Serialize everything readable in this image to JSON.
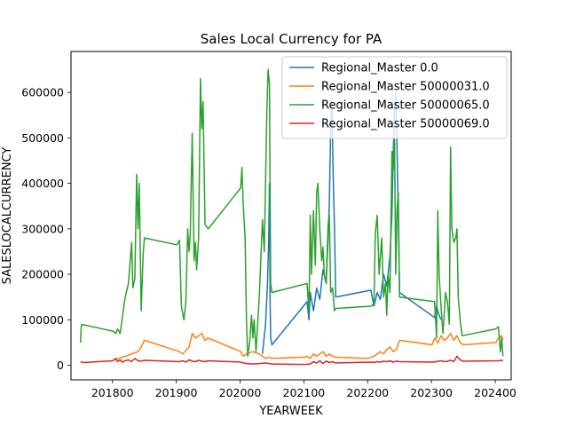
{
  "chart_data": {
    "type": "line",
    "title": "Sales Local Currency for PA",
    "xlabel": "YEARWEEK",
    "ylabel": "SALESLOCALCURRENCY",
    "xlim": [
      201735,
      202425
    ],
    "ylim": [
      -32000,
      690000
    ],
    "xticks": [
      201800,
      201900,
      202000,
      202100,
      202200,
      202300,
      202400
    ],
    "yticks": [
      0,
      100000,
      200000,
      300000,
      400000,
      500000,
      600000
    ],
    "legend_position": "upper right",
    "grid": false,
    "series": [
      {
        "name": "Regional_Master 0.0",
        "color": "#1f77b4",
        "points": [
          [
            202035,
            25000
          ],
          [
            202040,
            90000
          ],
          [
            202043,
            180000
          ],
          [
            202045,
            280000
          ],
          [
            202046,
            400000
          ],
          [
            202047,
            150000
          ],
          [
            202048,
            60000
          ],
          [
            202050,
            45000
          ],
          [
            202105,
            140000
          ],
          [
            202108,
            100000
          ],
          [
            202110,
            160000
          ],
          [
            202115,
            120000
          ],
          [
            202120,
            170000
          ],
          [
            202125,
            145000
          ],
          [
            202130,
            210000
          ],
          [
            202135,
            180000
          ],
          [
            202138,
            280000
          ],
          [
            202140,
            360000
          ],
          [
            202142,
            520000
          ],
          [
            202144,
            580000
          ],
          [
            202146,
            420000
          ],
          [
            202148,
            300000
          ],
          [
            202150,
            150000
          ],
          [
            202205,
            165000
          ],
          [
            202210,
            130000
          ],
          [
            202215,
            160000
          ],
          [
            202220,
            145000
          ],
          [
            202225,
            200000
          ],
          [
            202230,
            175000
          ],
          [
            202235,
            240000
          ],
          [
            202238,
            330000
          ],
          [
            202240,
            460000
          ],
          [
            202242,
            560000
          ],
          [
            202244,
            600000
          ],
          [
            202246,
            480000
          ],
          [
            202248,
            330000
          ],
          [
            202250,
            160000
          ],
          [
            202305,
            105000
          ],
          [
            202308,
            130000
          ],
          [
            202312,
            110000
          ],
          [
            202315,
            100000
          ]
        ]
      },
      {
        "name": "Regional_Master 50000031.0",
        "color": "#ff7f0e",
        "points": [
          [
            201801,
            12000
          ],
          [
            201810,
            15000
          ],
          [
            201820,
            20000
          ],
          [
            201830,
            25000
          ],
          [
            201840,
            30000
          ],
          [
            201845,
            40000
          ],
          [
            201850,
            55000
          ],
          [
            201905,
            30000
          ],
          [
            201910,
            25000
          ],
          [
            201920,
            40000
          ],
          [
            201925,
            70000
          ],
          [
            201930,
            60000
          ],
          [
            201935,
            65000
          ],
          [
            201940,
            70000
          ],
          [
            201945,
            55000
          ],
          [
            201950,
            60000
          ],
          [
            202001,
            30000
          ],
          [
            202005,
            20000
          ],
          [
            202010,
            25000
          ],
          [
            202020,
            30000
          ],
          [
            202030,
            25000
          ],
          [
            202035,
            20000
          ],
          [
            202040,
            15000
          ],
          [
            202045,
            18000
          ],
          [
            202050,
            15000
          ],
          [
            202101,
            18000
          ],
          [
            202105,
            20000
          ],
          [
            202110,
            15000
          ],
          [
            202115,
            25000
          ],
          [
            202120,
            20000
          ],
          [
            202125,
            25000
          ],
          [
            202130,
            30000
          ],
          [
            202135,
            20000
          ],
          [
            202140,
            25000
          ],
          [
            202145,
            20000
          ],
          [
            202150,
            18000
          ],
          [
            202201,
            15000
          ],
          [
            202210,
            20000
          ],
          [
            202220,
            30000
          ],
          [
            202225,
            25000
          ],
          [
            202230,
            35000
          ],
          [
            202235,
            40000
          ],
          [
            202240,
            30000
          ],
          [
            202245,
            35000
          ],
          [
            202250,
            55000
          ],
          [
            202301,
            45000
          ],
          [
            202305,
            60000
          ],
          [
            202310,
            50000
          ],
          [
            202315,
            65000
          ],
          [
            202320,
            55000
          ],
          [
            202325,
            60000
          ],
          [
            202330,
            70000
          ],
          [
            202335,
            55000
          ],
          [
            202340,
            65000
          ],
          [
            202345,
            50000
          ],
          [
            202350,
            45000
          ],
          [
            202401,
            50000
          ],
          [
            202405,
            60000
          ],
          [
            202410,
            65000
          ],
          [
            202412,
            55000
          ]
        ]
      },
      {
        "name": "Regional_Master 50000065.0",
        "color": "#2ca02c",
        "points": [
          [
            201750,
            50000
          ],
          [
            201751,
            85000
          ],
          [
            201752,
            90000
          ],
          [
            201801,
            75000
          ],
          [
            201805,
            70000
          ],
          [
            201808,
            80000
          ],
          [
            201812,
            70000
          ],
          [
            201815,
            100000
          ],
          [
            201820,
            150000
          ],
          [
            201825,
            180000
          ],
          [
            201830,
            270000
          ],
          [
            201832,
            170000
          ],
          [
            201835,
            190000
          ],
          [
            201838,
            420000
          ],
          [
            201840,
            300000
          ],
          [
            201842,
            400000
          ],
          [
            201845,
            120000
          ],
          [
            201848,
            240000
          ],
          [
            201850,
            280000
          ],
          [
            201901,
            265000
          ],
          [
            201905,
            275000
          ],
          [
            201908,
            130000
          ],
          [
            201912,
            100000
          ],
          [
            201915,
            140000
          ],
          [
            201918,
            300000
          ],
          [
            201920,
            250000
          ],
          [
            201922,
            290000
          ],
          [
            201925,
            510000
          ],
          [
            201928,
            230000
          ],
          [
            201930,
            270000
          ],
          [
            201932,
            210000
          ],
          [
            201935,
            280000
          ],
          [
            201938,
            630000
          ],
          [
            201940,
            520000
          ],
          [
            201942,
            580000
          ],
          [
            201945,
            310000
          ],
          [
            201950,
            300000
          ],
          [
            202001,
            390000
          ],
          [
            202003,
            435000
          ],
          [
            202005,
            350000
          ],
          [
            202008,
            280000
          ],
          [
            202010,
            100000
          ],
          [
            202012,
            20000
          ],
          [
            202015,
            50000
          ],
          [
            202018,
            110000
          ],
          [
            202020,
            60000
          ],
          [
            202022,
            100000
          ],
          [
            202025,
            30000
          ],
          [
            202030,
            150000
          ],
          [
            202035,
            320000
          ],
          [
            202038,
            250000
          ],
          [
            202040,
            400000
          ],
          [
            202042,
            560000
          ],
          [
            202044,
            650000
          ],
          [
            202046,
            620000
          ],
          [
            202048,
            180000
          ],
          [
            202050,
            160000
          ],
          [
            202105,
            180000
          ],
          [
            202108,
            120000
          ],
          [
            202110,
            330000
          ],
          [
            202112,
            200000
          ],
          [
            202115,
            340000
          ],
          [
            202118,
            220000
          ],
          [
            202120,
            380000
          ],
          [
            202122,
            400000
          ],
          [
            202125,
            300000
          ],
          [
            202128,
            230000
          ],
          [
            202130,
            260000
          ],
          [
            202132,
            200000
          ],
          [
            202135,
            180000
          ],
          [
            202138,
            310000
          ],
          [
            202140,
            330000
          ],
          [
            202142,
            160000
          ],
          [
            202145,
            170000
          ],
          [
            202148,
            120000
          ],
          [
            202150,
            125000
          ],
          [
            202205,
            130000
          ],
          [
            202210,
            135000
          ],
          [
            202212,
            290000
          ],
          [
            202215,
            330000
          ],
          [
            202218,
            200000
          ],
          [
            202220,
            240000
          ],
          [
            202222,
            280000
          ],
          [
            202225,
            150000
          ],
          [
            202228,
            180000
          ],
          [
            202230,
            110000
          ],
          [
            202232,
            200000
          ],
          [
            202235,
            160000
          ],
          [
            202238,
            470000
          ],
          [
            202240,
            430000
          ],
          [
            202242,
            500000
          ],
          [
            202244,
            200000
          ],
          [
            202246,
            340000
          ],
          [
            202248,
            380000
          ],
          [
            202250,
            150000
          ],
          [
            202305,
            140000
          ],
          [
            202308,
            60000
          ],
          [
            202310,
            340000
          ],
          [
            202312,
            200000
          ],
          [
            202315,
            130000
          ],
          [
            202318,
            70000
          ],
          [
            202320,
            110000
          ],
          [
            202322,
            160000
          ],
          [
            202325,
            140000
          ],
          [
            202328,
            90000
          ],
          [
            202330,
            480000
          ],
          [
            202332,
            300000
          ],
          [
            202335,
            270000
          ],
          [
            202338,
            280000
          ],
          [
            202340,
            300000
          ],
          [
            202342,
            150000
          ],
          [
            202345,
            100000
          ],
          [
            202348,
            65000
          ],
          [
            202401,
            80000
          ],
          [
            202405,
            85000
          ],
          [
            202408,
            30000
          ],
          [
            202410,
            60000
          ],
          [
            202412,
            20000
          ]
        ]
      },
      {
        "name": "Regional_Master 50000069.0",
        "color": "#d62728",
        "points": [
          [
            201750,
            8000
          ],
          [
            201755,
            6000
          ],
          [
            201801,
            10000
          ],
          [
            201805,
            15000
          ],
          [
            201808,
            8000
          ],
          [
            201812,
            12000
          ],
          [
            201815,
            7000
          ],
          [
            201820,
            10000
          ],
          [
            201825,
            12000
          ],
          [
            201830,
            8000
          ],
          [
            201835,
            15000
          ],
          [
            201840,
            10000
          ],
          [
            201845,
            9000
          ],
          [
            201850,
            11000
          ],
          [
            201905,
            8000
          ],
          [
            201910,
            10000
          ],
          [
            201915,
            7000
          ],
          [
            201920,
            12000
          ],
          [
            201925,
            9000
          ],
          [
            201930,
            8000
          ],
          [
            201935,
            11000
          ],
          [
            201940,
            9000
          ],
          [
            201945,
            8000
          ],
          [
            201950,
            10000
          ],
          [
            202001,
            7000
          ],
          [
            202005,
            5000
          ],
          [
            202010,
            4000
          ],
          [
            202020,
            3000
          ],
          [
            202030,
            4000
          ],
          [
            202040,
            5000
          ],
          [
            202050,
            3000
          ],
          [
            202101,
            2000
          ],
          [
            202110,
            3000
          ],
          [
            202115,
            8000
          ],
          [
            202120,
            5000
          ],
          [
            202125,
            10000
          ],
          [
            202130,
            4000
          ],
          [
            202135,
            9000
          ],
          [
            202140,
            6000
          ],
          [
            202145,
            8000
          ],
          [
            202150,
            5000
          ],
          [
            202205,
            7000
          ],
          [
            202210,
            6000
          ],
          [
            202215,
            8000
          ],
          [
            202220,
            7000
          ],
          [
            202225,
            9000
          ],
          [
            202230,
            8000
          ],
          [
            202235,
            10000
          ],
          [
            202240,
            7000
          ],
          [
            202245,
            9000
          ],
          [
            202250,
            8000
          ],
          [
            202305,
            7000
          ],
          [
            202310,
            9000
          ],
          [
            202315,
            10000
          ],
          [
            202320,
            8000
          ],
          [
            202325,
            9000
          ],
          [
            202330,
            11000
          ],
          [
            202335,
            8000
          ],
          [
            202340,
            20000
          ],
          [
            202345,
            12000
          ],
          [
            202350,
            9000
          ],
          [
            202405,
            10000
          ],
          [
            202410,
            11000
          ],
          [
            202412,
            10000
          ]
        ]
      }
    ]
  }
}
